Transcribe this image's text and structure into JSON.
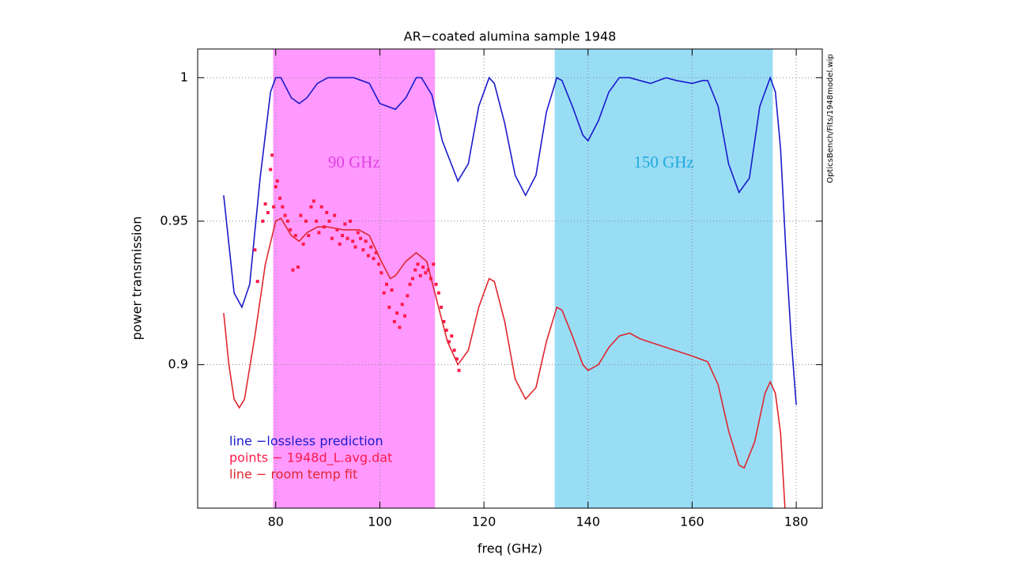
{
  "chart_data": {
    "type": "line",
    "title": "AR−coated alumina sample 1948",
    "xlabel": "freq (GHz)",
    "ylabel": "power transmission",
    "annotation": "OpticsBench/Fits/1948model.wip",
    "xlim": [
      65,
      185
    ],
    "ylim": [
      0.85,
      1.01
    ],
    "xticks": [
      80,
      100,
      120,
      140,
      160,
      180
    ],
    "yticks": [
      0.9,
      0.95,
      1
    ],
    "grid": true,
    "legend": "bottom-left",
    "bands": [
      {
        "label": "90 GHz",
        "x0": 79.5,
        "x1": 110.6,
        "color": "#ff99ff",
        "label_color": "#e040e0"
      },
      {
        "label": "150 GHz",
        "x0": 133.6,
        "x1": 175.5,
        "color": "#99ddf5",
        "label_color": "#22aadd"
      }
    ],
    "series": [
      {
        "name": "line −lossless prediction",
        "style": "line",
        "color": "#1a1acc",
        "x": [
          70,
          72,
          73.5,
          75,
          77,
          79,
          80,
          81,
          83,
          84.5,
          86,
          88,
          90,
          95,
          98,
          100,
          103,
          105,
          107,
          108,
          110,
          112,
          115,
          117,
          119,
          121,
          122,
          124,
          126,
          128,
          130,
          132,
          134,
          135,
          137,
          139,
          140,
          142,
          144,
          146,
          148,
          150,
          152,
          155,
          157,
          160,
          162,
          163,
          165,
          167,
          169,
          171,
          173,
          175,
          176,
          177,
          178,
          179,
          180
        ],
        "values": [
          0.959,
          0.925,
          0.92,
          0.928,
          0.965,
          0.995,
          1.0,
          1.0,
          0.993,
          0.991,
          0.993,
          0.998,
          1.0,
          1.0,
          0.998,
          0.991,
          0.989,
          0.993,
          1.0,
          1.0,
          0.994,
          0.978,
          0.964,
          0.97,
          0.99,
          1.0,
          0.998,
          0.984,
          0.966,
          0.959,
          0.966,
          0.988,
          1.0,
          0.999,
          0.99,
          0.98,
          0.978,
          0.985,
          0.995,
          1.0,
          1.0,
          0.999,
          0.998,
          1.0,
          0.999,
          0.998,
          0.999,
          0.999,
          0.99,
          0.97,
          0.96,
          0.965,
          0.99,
          1.0,
          0.995,
          0.975,
          0.94,
          0.91,
          0.886
        ]
      },
      {
        "name": "points − 1948d_L.avg.dat",
        "style": "points",
        "color": "#ff1a4a",
        "x": [
          76,
          76.5,
          77.5,
          78,
          78.5,
          79,
          79.3,
          79.6,
          80,
          80.3,
          80.8,
          81.3,
          81.8,
          82.3,
          82.8,
          83.3,
          83.8,
          84.3,
          84.8,
          85.3,
          85.8,
          86.3,
          86.8,
          87.3,
          87.8,
          88.3,
          88.8,
          89.3,
          89.8,
          90.3,
          90.8,
          91.3,
          91.8,
          92.3,
          92.8,
          93.3,
          93.8,
          94.3,
          94.8,
          95.3,
          95.8,
          96.3,
          96.8,
          97.3,
          97.8,
          98.3,
          98.8,
          99.3,
          99.8,
          100.3,
          100.8,
          101.3,
          101.8,
          102.3,
          102.8,
          103.3,
          103.8,
          104.3,
          104.8,
          105.3,
          105.8,
          106.3,
          106.8,
          107.3,
          107.8,
          108.3,
          108.8,
          109.3,
          109.8,
          110.3,
          110.8,
          111.3,
          111.8,
          112.3,
          112.8,
          113.3,
          113.8,
          114.3,
          114.8,
          115.2
        ],
        "values": [
          0.94,
          0.929,
          0.95,
          0.956,
          0.953,
          0.968,
          0.973,
          0.955,
          0.962,
          0.964,
          0.958,
          0.955,
          0.952,
          0.95,
          0.947,
          0.933,
          0.945,
          0.934,
          0.952,
          0.942,
          0.95,
          0.945,
          0.955,
          0.957,
          0.95,
          0.946,
          0.955,
          0.948,
          0.953,
          0.95,
          0.944,
          0.952,
          0.947,
          0.942,
          0.945,
          0.949,
          0.944,
          0.95,
          0.943,
          0.941,
          0.946,
          0.944,
          0.94,
          0.943,
          0.938,
          0.941,
          0.937,
          0.939,
          0.935,
          0.932,
          0.925,
          0.928,
          0.92,
          0.926,
          0.915,
          0.918,
          0.913,
          0.921,
          0.917,
          0.924,
          0.928,
          0.93,
          0.933,
          0.935,
          0.931,
          0.934,
          0.932,
          0.933,
          0.93,
          0.935,
          0.928,
          0.925,
          0.92,
          0.915,
          0.912,
          0.908,
          0.91,
          0.905,
          0.902,
          0.898
        ]
      },
      {
        "name": "line − room temp fit",
        "style": "line",
        "color": "#e0262f",
        "x": [
          70,
          71,
          72,
          73,
          74,
          76,
          78,
          80,
          81,
          83,
          84.5,
          86,
          88,
          90,
          93,
          96,
          98,
          100,
          102,
          103,
          105,
          107,
          109,
          111,
          113,
          115,
          117,
          119,
          121,
          122,
          124,
          126,
          128,
          130,
          132,
          134,
          135,
          137,
          139,
          140,
          142,
          144,
          146,
          148,
          150,
          155,
          160,
          163,
          165,
          167,
          169,
          170,
          172,
          174,
          175,
          176,
          177,
          178
        ],
        "values": [
          0.918,
          0.9,
          0.888,
          0.885,
          0.888,
          0.91,
          0.935,
          0.95,
          0.951,
          0.945,
          0.943,
          0.946,
          0.948,
          0.948,
          0.947,
          0.947,
          0.945,
          0.937,
          0.93,
          0.931,
          0.936,
          0.939,
          0.936,
          0.922,
          0.908,
          0.9,
          0.905,
          0.92,
          0.93,
          0.929,
          0.915,
          0.895,
          0.888,
          0.892,
          0.908,
          0.92,
          0.919,
          0.91,
          0.9,
          0.898,
          0.9,
          0.906,
          0.91,
          0.911,
          0.909,
          0.906,
          0.903,
          0.901,
          0.893,
          0.877,
          0.865,
          0.864,
          0.873,
          0.89,
          0.894,
          0.89,
          0.876,
          0.845
        ]
      }
    ]
  }
}
